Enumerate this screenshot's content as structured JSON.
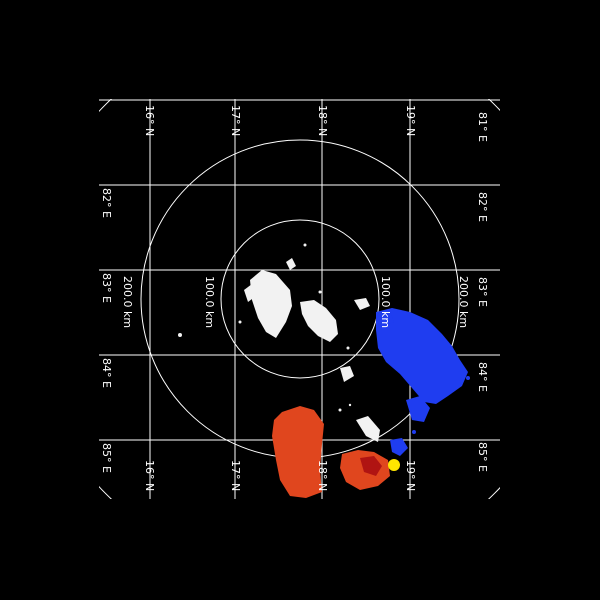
{
  "map": {
    "grid_lat_labels": [
      "16° N",
      "17° N",
      "18° N",
      "19° N"
    ],
    "grid_lon_labels": [
      "81° E",
      "82° E",
      "83° E",
      "84° E",
      "85° E"
    ],
    "range_labels": [
      "100.0 km",
      "200.0 km"
    ],
    "colors": {
      "background": "#000000",
      "grid": "#ffffff",
      "echo_white": "#f2f2f2",
      "echo_blue": "#1f3df0",
      "echo_red": "#e0461e",
      "echo_dark_red": "#b01412",
      "marker": "#ffe600"
    },
    "marker_icon": "yellow-dot-icon"
  }
}
